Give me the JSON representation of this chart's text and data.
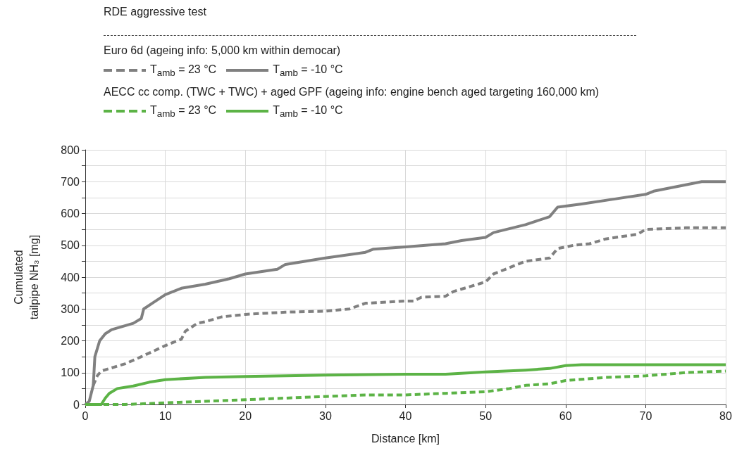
{
  "chart_data": {
    "type": "line",
    "title": "RDE aggressive test",
    "xlabel": "Distance [km]",
    "ylabel": "Cumulated\ntailpipe NH₃ [mg]",
    "annotations": [
      "Euro 6d (ageing info: 5,000 km within democar)",
      "AECC cc comp. (TWC + TWC) + aged GPF (ageing info: engine bench aged targeting 160,000 km)"
    ],
    "xlim": [
      0,
      80
    ],
    "xticks": [
      0,
      10,
      20,
      30,
      40,
      50,
      60,
      70,
      80
    ],
    "ylim": [
      0,
      800
    ],
    "yticks": [
      0,
      {
        "value": 50,
        "label": null
      },
      100,
      {
        "value": 150,
        "label": null
      },
      200,
      {
        "value": 250,
        "label": null
      },
      300,
      {
        "value": 350,
        "label": null
      },
      400,
      {
        "value": 450,
        "label": null
      },
      500,
      {
        "value": 550,
        "label": null
      },
      600,
      {
        "value": 650,
        "label": null
      },
      700,
      {
        "value": 750,
        "label": null
      },
      800
    ],
    "grid": true,
    "legend": "top left",
    "marker": "none",
    "series": [
      {
        "name": "T$_{amb}$ = 23 °C",
        "color": "#808080",
        "line_style": "dashed",
        "x": [
          1,
          1.5,
          2,
          5,
          7,
          10,
          12,
          12.5,
          14,
          15,
          17,
          20,
          25,
          30,
          33,
          35,
          40,
          41,
          42,
          45,
          46,
          48,
          50,
          51,
          53,
          55,
          58,
          59,
          61,
          63,
          65,
          69,
          70,
          72,
          75,
          80
        ],
        "values": [
          60,
          90,
          105,
          128,
          150,
          185,
          205,
          230,
          255,
          260,
          275,
          283,
          290,
          293,
          300,
          318,
          325,
          325,
          337,
          340,
          355,
          370,
          385,
          410,
          430,
          450,
          460,
          490,
          500,
          505,
          520,
          535,
          550,
          552,
          555,
          555
        ]
      },
      {
        "name": "T$_{amb}$ = -10 °C",
        "color": "#808080",
        "line_style": "solid",
        "x": [
          0,
          0.5,
          1,
          1.2,
          1.8,
          2.5,
          3.3,
          6,
          7,
          7.3,
          8.5,
          10,
          12,
          15,
          18,
          20,
          24,
          25,
          30,
          35,
          36,
          40,
          45,
          47,
          50,
          51,
          55,
          58,
          59,
          62,
          66,
          70,
          71,
          75,
          77,
          80
        ],
        "values": [
          0,
          10,
          60,
          150,
          200,
          222,
          235,
          255,
          270,
          300,
          320,
          345,
          365,
          378,
          395,
          410,
          425,
          440,
          460,
          478,
          488,
          495,
          505,
          515,
          525,
          540,
          565,
          590,
          620,
          630,
          645,
          660,
          670,
          690,
          700,
          700
        ]
      },
      {
        "name": "T$_{amb}$ = 23 °C",
        "color": "#5cb346",
        "line_style": "dashed",
        "x": [
          0,
          5,
          10,
          15,
          20,
          25,
          30,
          35,
          40,
          45,
          50,
          53,
          55,
          58,
          60,
          65,
          70,
          75,
          80
        ],
        "values": [
          0,
          0,
          5,
          10,
          15,
          20,
          25,
          30,
          30,
          35,
          40,
          50,
          60,
          65,
          75,
          85,
          90,
          100,
          105
        ]
      },
      {
        "name": "T$_{amb}$ = -10 °C",
        "color": "#5cb346",
        "line_style": "solid",
        "x": [
          0,
          2,
          2.5,
          3,
          4,
          6,
          8,
          10,
          15,
          20,
          30,
          40,
          45,
          50,
          55,
          58,
          60,
          62,
          80
        ],
        "values": [
          0,
          0,
          20,
          35,
          50,
          58,
          70,
          78,
          85,
          88,
          92,
          95,
          95,
          102,
          108,
          113,
          122,
          125,
          125
        ]
      }
    ]
  }
}
